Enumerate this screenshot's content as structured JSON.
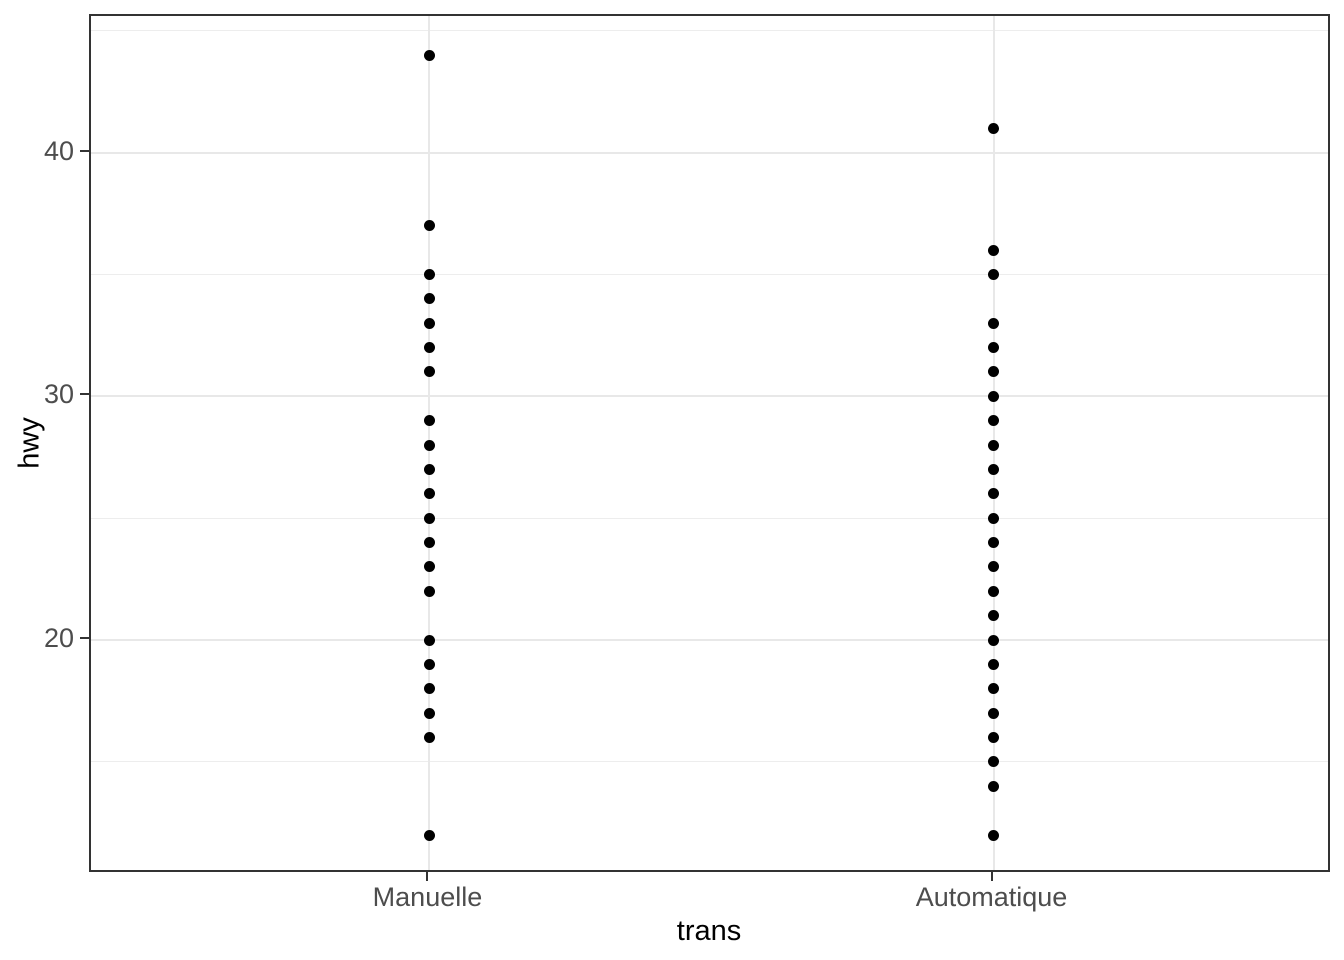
{
  "chart_data": {
    "type": "scatter",
    "title": "",
    "xlabel": "trans",
    "ylabel": "hwy",
    "categories": [
      "Manuelle",
      "Automatique"
    ],
    "series": [
      {
        "name": "Manuelle",
        "values": [
          44,
          37,
          35,
          34,
          33,
          32,
          31,
          29,
          28,
          27,
          26,
          25,
          24,
          23,
          22,
          20,
          19,
          18,
          17,
          16,
          12
        ]
      },
      {
        "name": "Automatique",
        "values": [
          41,
          36,
          35,
          33,
          32,
          31,
          30,
          29,
          28,
          27,
          26,
          25,
          24,
          23,
          22,
          21,
          20,
          19,
          18,
          17,
          16,
          15,
          14,
          12
        ]
      }
    ],
    "ylim": [
      10.4,
      45.6
    ],
    "xlim_positions": [
      0.4,
      2.6
    ],
    "y_major_ticks": [
      20,
      30,
      40
    ],
    "y_tick_labels": [
      "20",
      "30",
      "40"
    ],
    "y_minor_gridlines": [
      15,
      25,
      35,
      45
    ],
    "grid": "on",
    "legend": "none",
    "point_color": "#000000",
    "background": "#ffffff",
    "panel_border_color": "#333333",
    "gridline_major_color": "#e8e8e8",
    "gridline_minor_color": "#ededed",
    "axis_text_color": "#4d4d4d",
    "axis_title_color": "#000000"
  }
}
